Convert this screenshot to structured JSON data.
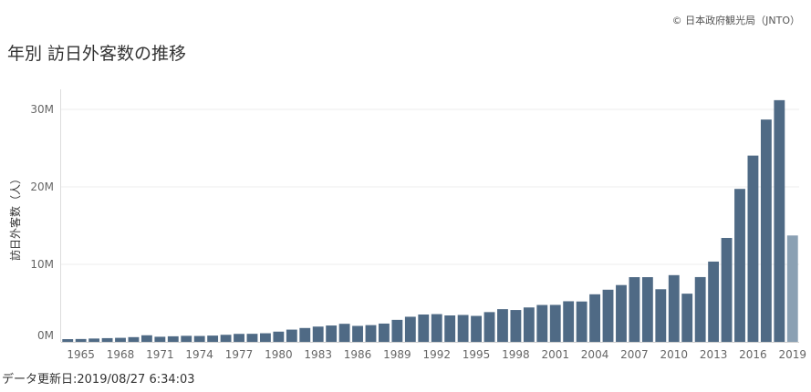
{
  "header": {
    "copyright": "© 日本政府観光局（JNTO）",
    "title": "年別 訪日外客数の推移"
  },
  "footer": {
    "updated": "データ更新日:2019/08/27 6:34:03"
  },
  "colors": {
    "bar": "#4f6a85",
    "bar_highlight": "#8aa0b3",
    "grid": "#ececec",
    "axis_text": "#666666"
  },
  "chart_data": {
    "type": "bar",
    "title": "",
    "xlabel": "",
    "ylabel": "訪日外客数（人）",
    "ylim": [
      0,
      33000000
    ],
    "grid": true,
    "y_ticks": [
      {
        "value": 0,
        "label": "0M"
      },
      {
        "value": 10000000,
        "label": "10M"
      },
      {
        "value": 20000000,
        "label": "20M"
      },
      {
        "value": 30000000,
        "label": "30M"
      }
    ],
    "x_tick_labels": [
      "1965",
      "1968",
      "1971",
      "1974",
      "1977",
      "1980",
      "1983",
      "1986",
      "1989",
      "1992",
      "1995",
      "1998",
      "2001",
      "2004",
      "2007",
      "2010",
      "2013",
      "2016",
      "2019"
    ],
    "categories": [
      "1964",
      "1965",
      "1966",
      "1967",
      "1968",
      "1969",
      "1970",
      "1971",
      "1972",
      "1973",
      "1974",
      "1975",
      "1976",
      "1977",
      "1978",
      "1979",
      "1980",
      "1981",
      "1982",
      "1983",
      "1984",
      "1985",
      "1986",
      "1987",
      "1988",
      "1989",
      "1990",
      "1991",
      "1992",
      "1993",
      "1994",
      "1995",
      "1996",
      "1997",
      "1998",
      "1999",
      "2000",
      "2001",
      "2002",
      "2003",
      "2004",
      "2005",
      "2006",
      "2007",
      "2008",
      "2009",
      "2010",
      "2011",
      "2012",
      "2013",
      "2014",
      "2015",
      "2016",
      "2017",
      "2018",
      "2019"
    ],
    "values": [
      350000,
      370000,
      430000,
      480000,
      520000,
      610000,
      850000,
      660000,
      720000,
      780000,
      760000,
      810000,
      910000,
      1030000,
      1040000,
      1110000,
      1320000,
      1580000,
      1790000,
      1970000,
      2110000,
      2330000,
      2060000,
      2160000,
      2360000,
      2840000,
      3240000,
      3530000,
      3580000,
      3410000,
      3470000,
      3350000,
      3840000,
      4220000,
      4110000,
      4440000,
      4760000,
      4770000,
      5240000,
      5210000,
      6140000,
      6730000,
      7330000,
      8350000,
      8350000,
      6790000,
      8610000,
      6220000,
      8360000,
      10360000,
      13410000,
      19740000,
      24040000,
      28690000,
      31190000,
      13730000
    ],
    "highlight": [
      "2019"
    ]
  }
}
